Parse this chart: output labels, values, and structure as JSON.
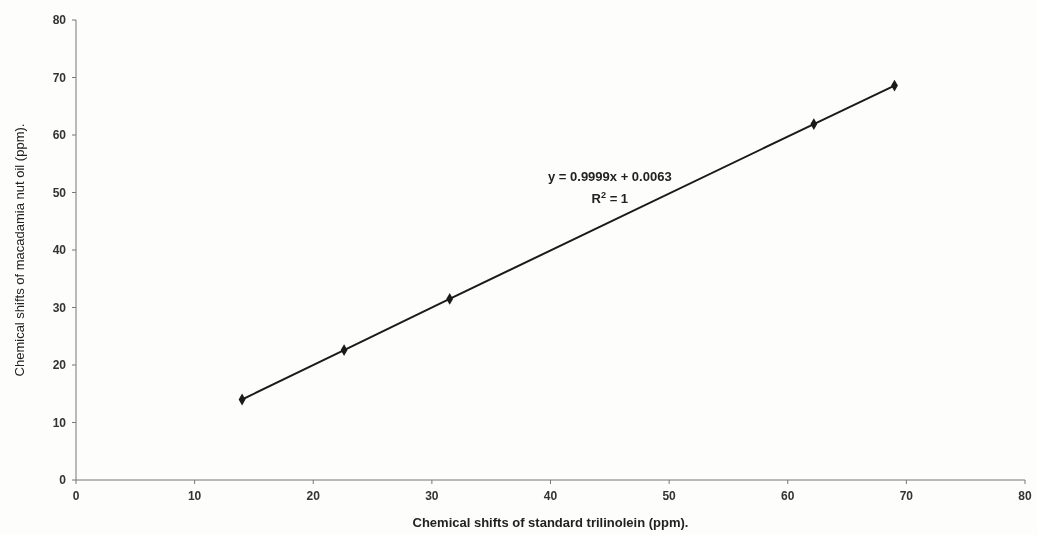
{
  "chart_data": {
    "type": "line",
    "xlabel": "Chemical shifts of standard trilinolein (ppm).",
    "ylabel": "Chemical shifts of macadamia nut oil (ppm).",
    "x": [
      14.0,
      22.6,
      31.5,
      62.2,
      69.0
    ],
    "series": [
      {
        "color": "#1a1a1a",
        "values": [
          14.0,
          22.6,
          31.5,
          61.9,
          68.6
        ]
      }
    ],
    "xlim": [
      0,
      80
    ],
    "xticks": [
      0,
      10,
      20,
      30,
      40,
      50,
      60,
      70,
      80
    ],
    "ylim": [
      0,
      80
    ],
    "yticks": [
      0,
      10,
      20,
      30,
      40,
      50,
      60,
      70,
      80
    ],
    "marker": "diamond",
    "line_style": "solid",
    "annotations": [
      "y = 0.9999x + 0.0063",
      "R$^{2}$ = 1"
    ]
  }
}
